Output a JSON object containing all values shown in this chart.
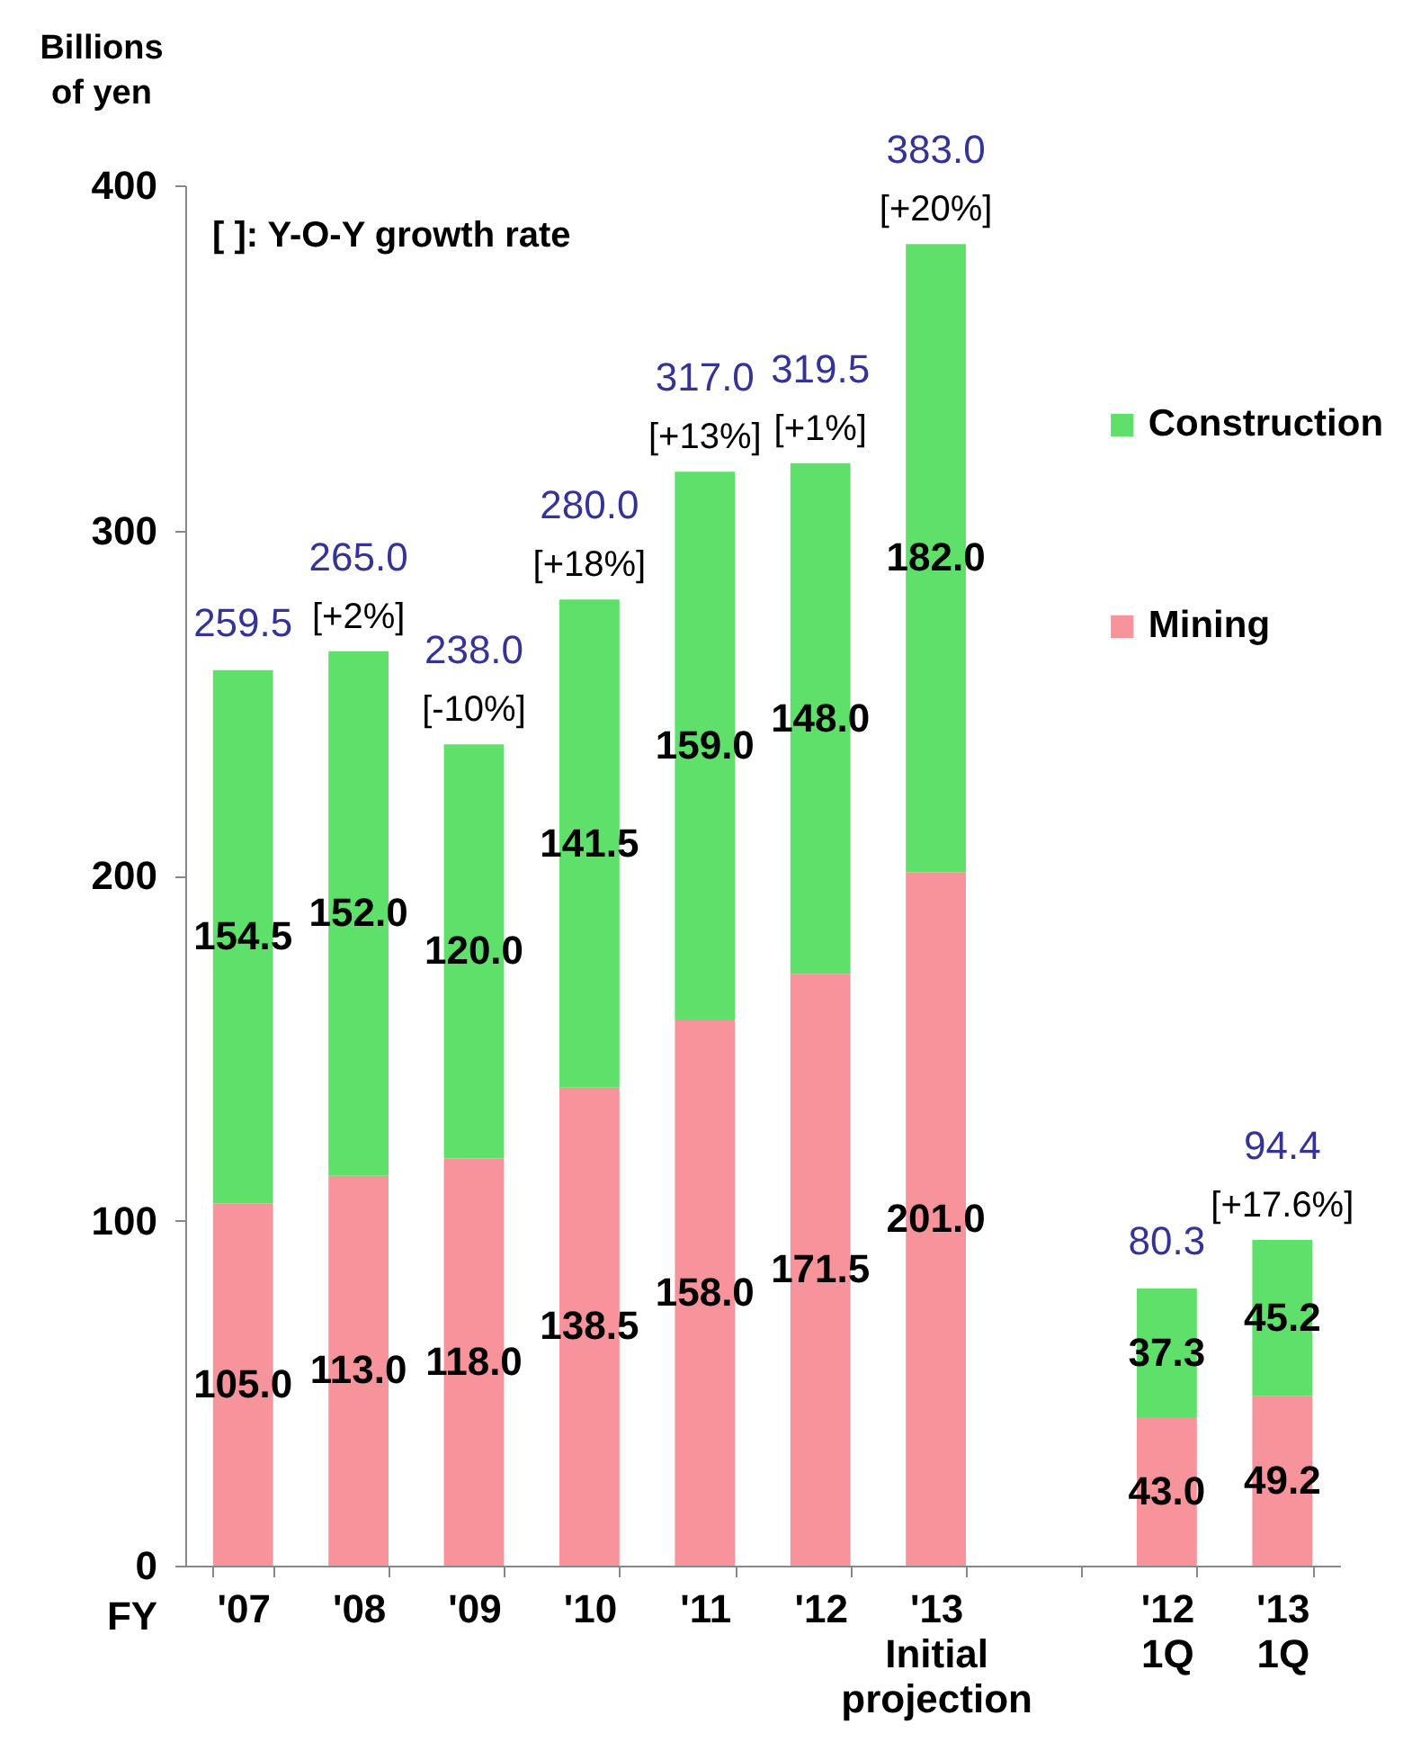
{
  "chart_data": {
    "type": "bar",
    "stacked": true,
    "ylabel": "Billions\nof yen",
    "xlabel": "FY",
    "categories": [
      "'07",
      "'08",
      "'09",
      "'10",
      "'11",
      "'12",
      "'13\nInitial\nprojection",
      null,
      "'12\n1Q",
      "'13\n1Q"
    ],
    "series": [
      {
        "name": "Mining",
        "color": "#f7939b",
        "values": [
          105.0,
          113.0,
          118.0,
          138.5,
          158.0,
          171.5,
          201.0,
          null,
          43.0,
          49.2
        ],
        "value_labels": [
          "105.0",
          "113.0",
          "118.0",
          "138.5",
          "158.0",
          "171.5",
          "201.0",
          null,
          "43.0",
          "49.2"
        ]
      },
      {
        "name": "Construction",
        "color": "#5ee06a",
        "values": [
          154.5,
          152.0,
          120.0,
          141.5,
          159.0,
          148.0,
          182.0,
          null,
          37.3,
          45.2
        ],
        "value_labels": [
          "154.5",
          "152.0",
          "120.0",
          "141.5",
          "159.0",
          "148.0",
          "182.0",
          null,
          "37.3",
          "45.2"
        ]
      }
    ],
    "ylim": [
      0,
      400
    ],
    "yticks": [
      0,
      100,
      200,
      300,
      400
    ],
    "legend": "top right",
    "totals": [
      "259.5",
      "265.0",
      "238.0",
      "280.0",
      "317.0",
      "319.5",
      "383.0",
      null,
      "80.3",
      "94.4"
    ],
    "annotations": [
      "[ ]: Y-O-Y growth rate",
      {
        "text": "[+2%]",
        "x": "'08",
        "y": 265.0
      },
      {
        "text": "[-10%]",
        "x": "'09",
        "y": 238.0
      },
      {
        "text": "[+18%]",
        "x": "'10",
        "y": 280.0
      },
      {
        "text": "[+13%]",
        "x": "'11",
        "y": 317.0
      },
      {
        "text": "[+1%]",
        "x": "'12",
        "y": 319.5
      },
      {
        "text": "[+20%]",
        "x": "'13\nInitial\nprojection",
        "y": 383.0
      },
      {
        "text": "[+17.6%]",
        "x": "'13\n1Q",
        "y": 94.4
      }
    ]
  }
}
